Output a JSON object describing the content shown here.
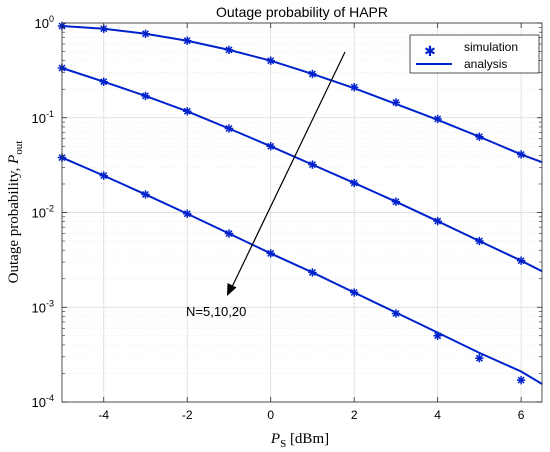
{
  "chart_data": {
    "type": "line",
    "title": "Outage probability of HAPR",
    "xlabel": {
      "symbol": "P",
      "subscript": "S",
      "unit": " [dBm]"
    },
    "ylabel": {
      "text": "Outage probability, ",
      "symbol": "P",
      "subscript": "out"
    },
    "xlim": [
      -5,
      6.5
    ],
    "ylim": [
      0.0001,
      1
    ],
    "yscale": "log",
    "grid": true,
    "x_ticks": [
      -4,
      -2,
      0,
      2,
      4,
      6
    ],
    "x_tick_labels": [
      "-4",
      "-2",
      "0",
      "2",
      "4",
      "6"
    ],
    "y_ticks": [
      {
        "base": "10",
        "exp": "0"
      },
      {
        "base": "10",
        "exp": "-1"
      },
      {
        "base": "10",
        "exp": "-2"
      },
      {
        "base": "10",
        "exp": "-3"
      },
      {
        "base": "10",
        "exp": "-4"
      }
    ],
    "legend": {
      "position": "top-right",
      "entries": [
        {
          "label": "simulation",
          "marker": "asterisk"
        },
        {
          "label": "analysis",
          "marker": "line"
        }
      ]
    },
    "annotation": {
      "text": "N=5,10,20"
    },
    "color": "#0022cc",
    "series": [
      {
        "analysis": [
          [
            -5,
            0.93
          ],
          [
            -4,
            0.87
          ],
          [
            -3,
            0.77
          ],
          [
            -2,
            0.65
          ],
          [
            -1,
            0.52
          ],
          [
            0,
            0.4
          ],
          [
            1,
            0.29
          ],
          [
            2,
            0.205
          ],
          [
            3,
            0.14
          ],
          [
            4,
            0.095
          ],
          [
            5,
            0.063
          ],
          [
            6,
            0.041
          ],
          [
            6.5,
            0.034
          ]
        ],
        "simulation": [
          [
            -5,
            0.93
          ],
          [
            -4,
            0.87
          ],
          [
            -3,
            0.77
          ],
          [
            -2,
            0.65
          ],
          [
            -1,
            0.52
          ],
          [
            0,
            0.4
          ],
          [
            1,
            0.29
          ],
          [
            2,
            0.21
          ],
          [
            3,
            0.145
          ],
          [
            4,
            0.097
          ],
          [
            5,
            0.063
          ],
          [
            6,
            0.041
          ]
        ]
      },
      {
        "analysis": [
          [
            -5,
            0.335
          ],
          [
            -4,
            0.24
          ],
          [
            -3,
            0.17
          ],
          [
            -2,
            0.117
          ],
          [
            -1,
            0.077
          ],
          [
            0,
            0.05
          ],
          [
            1,
            0.032
          ],
          [
            2,
            0.0205
          ],
          [
            3,
            0.013
          ],
          [
            4,
            0.0081
          ],
          [
            5,
            0.005
          ],
          [
            6,
            0.0031
          ],
          [
            6.5,
            0.0024
          ]
        ],
        "simulation": [
          [
            -5,
            0.335
          ],
          [
            -4,
            0.24
          ],
          [
            -3,
            0.17
          ],
          [
            -2,
            0.117
          ],
          [
            -1,
            0.077
          ],
          [
            0,
            0.05
          ],
          [
            1,
            0.032
          ],
          [
            2,
            0.0205
          ],
          [
            3,
            0.013
          ],
          [
            4,
            0.0081
          ],
          [
            5,
            0.005
          ],
          [
            6,
            0.0031
          ]
        ]
      },
      {
        "analysis": [
          [
            -5,
            0.038
          ],
          [
            -4,
            0.0245
          ],
          [
            -3,
            0.0155
          ],
          [
            -2,
            0.0097
          ],
          [
            -1,
            0.006
          ],
          [
            0,
            0.0037
          ],
          [
            1,
            0.00233
          ],
          [
            2,
            0.00143
          ],
          [
            3,
            0.00088
          ],
          [
            4,
            0.00054
          ],
          [
            5,
            0.00033
          ],
          [
            6,
            0.00021
          ],
          [
            6.5,
            0.000155
          ]
        ],
        "simulation": [
          [
            -5,
            0.038
          ],
          [
            -4,
            0.0245
          ],
          [
            -3,
            0.0155
          ],
          [
            -2,
            0.0097
          ],
          [
            -1,
            0.006
          ],
          [
            0,
            0.0037
          ],
          [
            1,
            0.00233
          ],
          [
            2,
            0.00143
          ],
          [
            3,
            0.00086
          ],
          [
            4,
            0.0005
          ],
          [
            5,
            0.00029
          ],
          [
            6,
            0.00017
          ]
        ]
      }
    ]
  }
}
